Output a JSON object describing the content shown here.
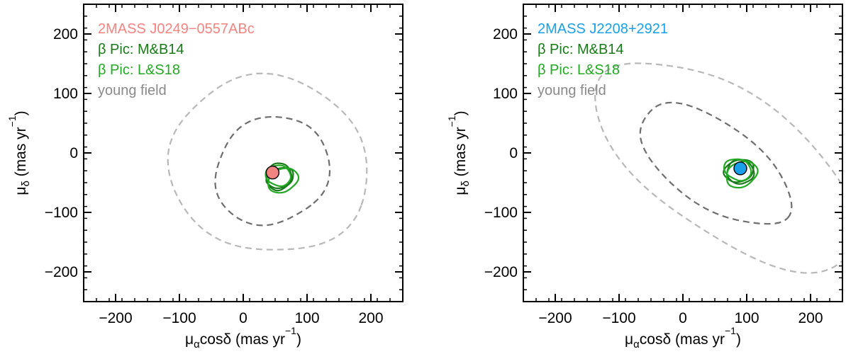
{
  "colors": {
    "beta_pic_mb14": "#1a7a1a",
    "beta_pic_ls18": "#22a822",
    "young_field_inner": "#6e6e6e",
    "young_field_outer": "#b8b8b8",
    "axes": "#000000"
  },
  "chart_data": [
    {
      "type": "scatter",
      "xlabel": {
        "base": "μ",
        "sub": "α",
        "rest": "cosδ (mas yr",
        "sup": "−1",
        "close": ")"
      },
      "ylabel": {
        "base": "μ",
        "sub": "δ",
        "rest": " (mas yr",
        "sup": "−1",
        "close": ")"
      },
      "xlim": [
        -250,
        250
      ],
      "ylim": [
        -250,
        250
      ],
      "xticks": [
        -200,
        -100,
        0,
        100,
        200
      ],
      "yticks": [
        -200,
        -100,
        0,
        100,
        200
      ],
      "xtick_labels": [
        "−200",
        "−100",
        "0",
        "100",
        "200"
      ],
      "ytick_labels": [
        "−200",
        "−100",
        "0",
        "100",
        "200"
      ],
      "legend_placement": "top-left",
      "legend": [
        {
          "label": "2MASS J0249−0557ABc",
          "color": "#f28482"
        },
        {
          "label": "β Pic: M&B14",
          "color": "#1a7a1a"
        },
        {
          "label": "β Pic: L&S18",
          "color": "#22a822"
        },
        {
          "label": "young field",
          "color": "#8a8a8a"
        }
      ],
      "object": {
        "name": "2MASS J0249−0557ABc",
        "x": 46,
        "y": -33,
        "color": "#f28482"
      },
      "young_field_contours": [
        {
          "level": "inner",
          "style": "dashed",
          "center": [
            45,
            -30
          ],
          "rx": 85,
          "ry": 95,
          "rotation_deg": 40
        },
        {
          "level": "outer",
          "style": "dashed",
          "center": [
            40,
            -20
          ],
          "rx": 158,
          "ry": 146,
          "rotation_deg": 25
        }
      ],
      "beta_pic_contours": [
        {
          "series": "β Pic: M&B14",
          "center": [
            58,
            -42
          ],
          "rx": 22,
          "ry": 16,
          "rotation_deg": -25
        },
        {
          "series": "β Pic: M&B14",
          "center": [
            56,
            -40
          ],
          "rx": 19,
          "ry": 23,
          "rotation_deg": 10
        },
        {
          "series": "β Pic: L&S18",
          "center": [
            62,
            -46
          ],
          "rx": 25,
          "ry": 19,
          "rotation_deg": -30
        },
        {
          "series": "β Pic: L&S18",
          "center": [
            55,
            -38
          ],
          "rx": 20,
          "ry": 17,
          "rotation_deg": 20
        }
      ]
    },
    {
      "type": "scatter",
      "xlabel": {
        "base": "μ",
        "sub": "α",
        "rest": "cosδ (mas yr",
        "sup": "−1",
        "close": ")"
      },
      "ylabel": {
        "base": "μ",
        "sub": "δ",
        "rest": " (mas yr",
        "sup": "−1",
        "close": ")"
      },
      "xlim": [
        -250,
        250
      ],
      "ylim": [
        -250,
        250
      ],
      "xticks": [
        -200,
        -100,
        0,
        100,
        200
      ],
      "yticks": [
        -200,
        -100,
        0,
        100,
        200
      ],
      "xtick_labels": [
        "−200",
        "−100",
        "0",
        "100",
        "200"
      ],
      "ytick_labels": [
        "−200",
        "−100",
        "0",
        "100",
        "200"
      ],
      "legend_placement": "top-left",
      "legend": [
        {
          "label": "2MASS J2208+2921",
          "color": "#1aa0e8"
        },
        {
          "label": "β Pic: M&B14",
          "color": "#1a7a1a"
        },
        {
          "label": "β Pic: L&S18",
          "color": "#22a822"
        },
        {
          "label": "young field",
          "color": "#8a8a8a"
        }
      ],
      "object": {
        "name": "2MASS J2208+2921",
        "x": 90,
        "y": -26,
        "color": "#1aa0e8"
      },
      "young_field_contours": [
        {
          "level": "inner",
          "style": "dashed",
          "center": [
            50,
            -20
          ],
          "rx": 140,
          "ry": 68,
          "rotation_deg": 38
        },
        {
          "level": "outer",
          "style": "dashed",
          "center": [
            70,
            -20
          ],
          "rx": 245,
          "ry": 115,
          "rotation_deg": 38
        }
      ],
      "beta_pic_contours": [
        {
          "series": "β Pic: M&B14",
          "center": [
            88,
            -30
          ],
          "rx": 24,
          "ry": 18,
          "rotation_deg": -20
        },
        {
          "series": "β Pic: M&B14",
          "center": [
            90,
            -32
          ],
          "rx": 21,
          "ry": 20,
          "rotation_deg": 15
        },
        {
          "series": "β Pic: L&S18",
          "center": [
            92,
            -36
          ],
          "rx": 26,
          "ry": 20,
          "rotation_deg": -35
        },
        {
          "series": "β Pic: L&S18",
          "center": [
            86,
            -28
          ],
          "rx": 22,
          "ry": 17,
          "rotation_deg": 25
        }
      ]
    }
  ]
}
